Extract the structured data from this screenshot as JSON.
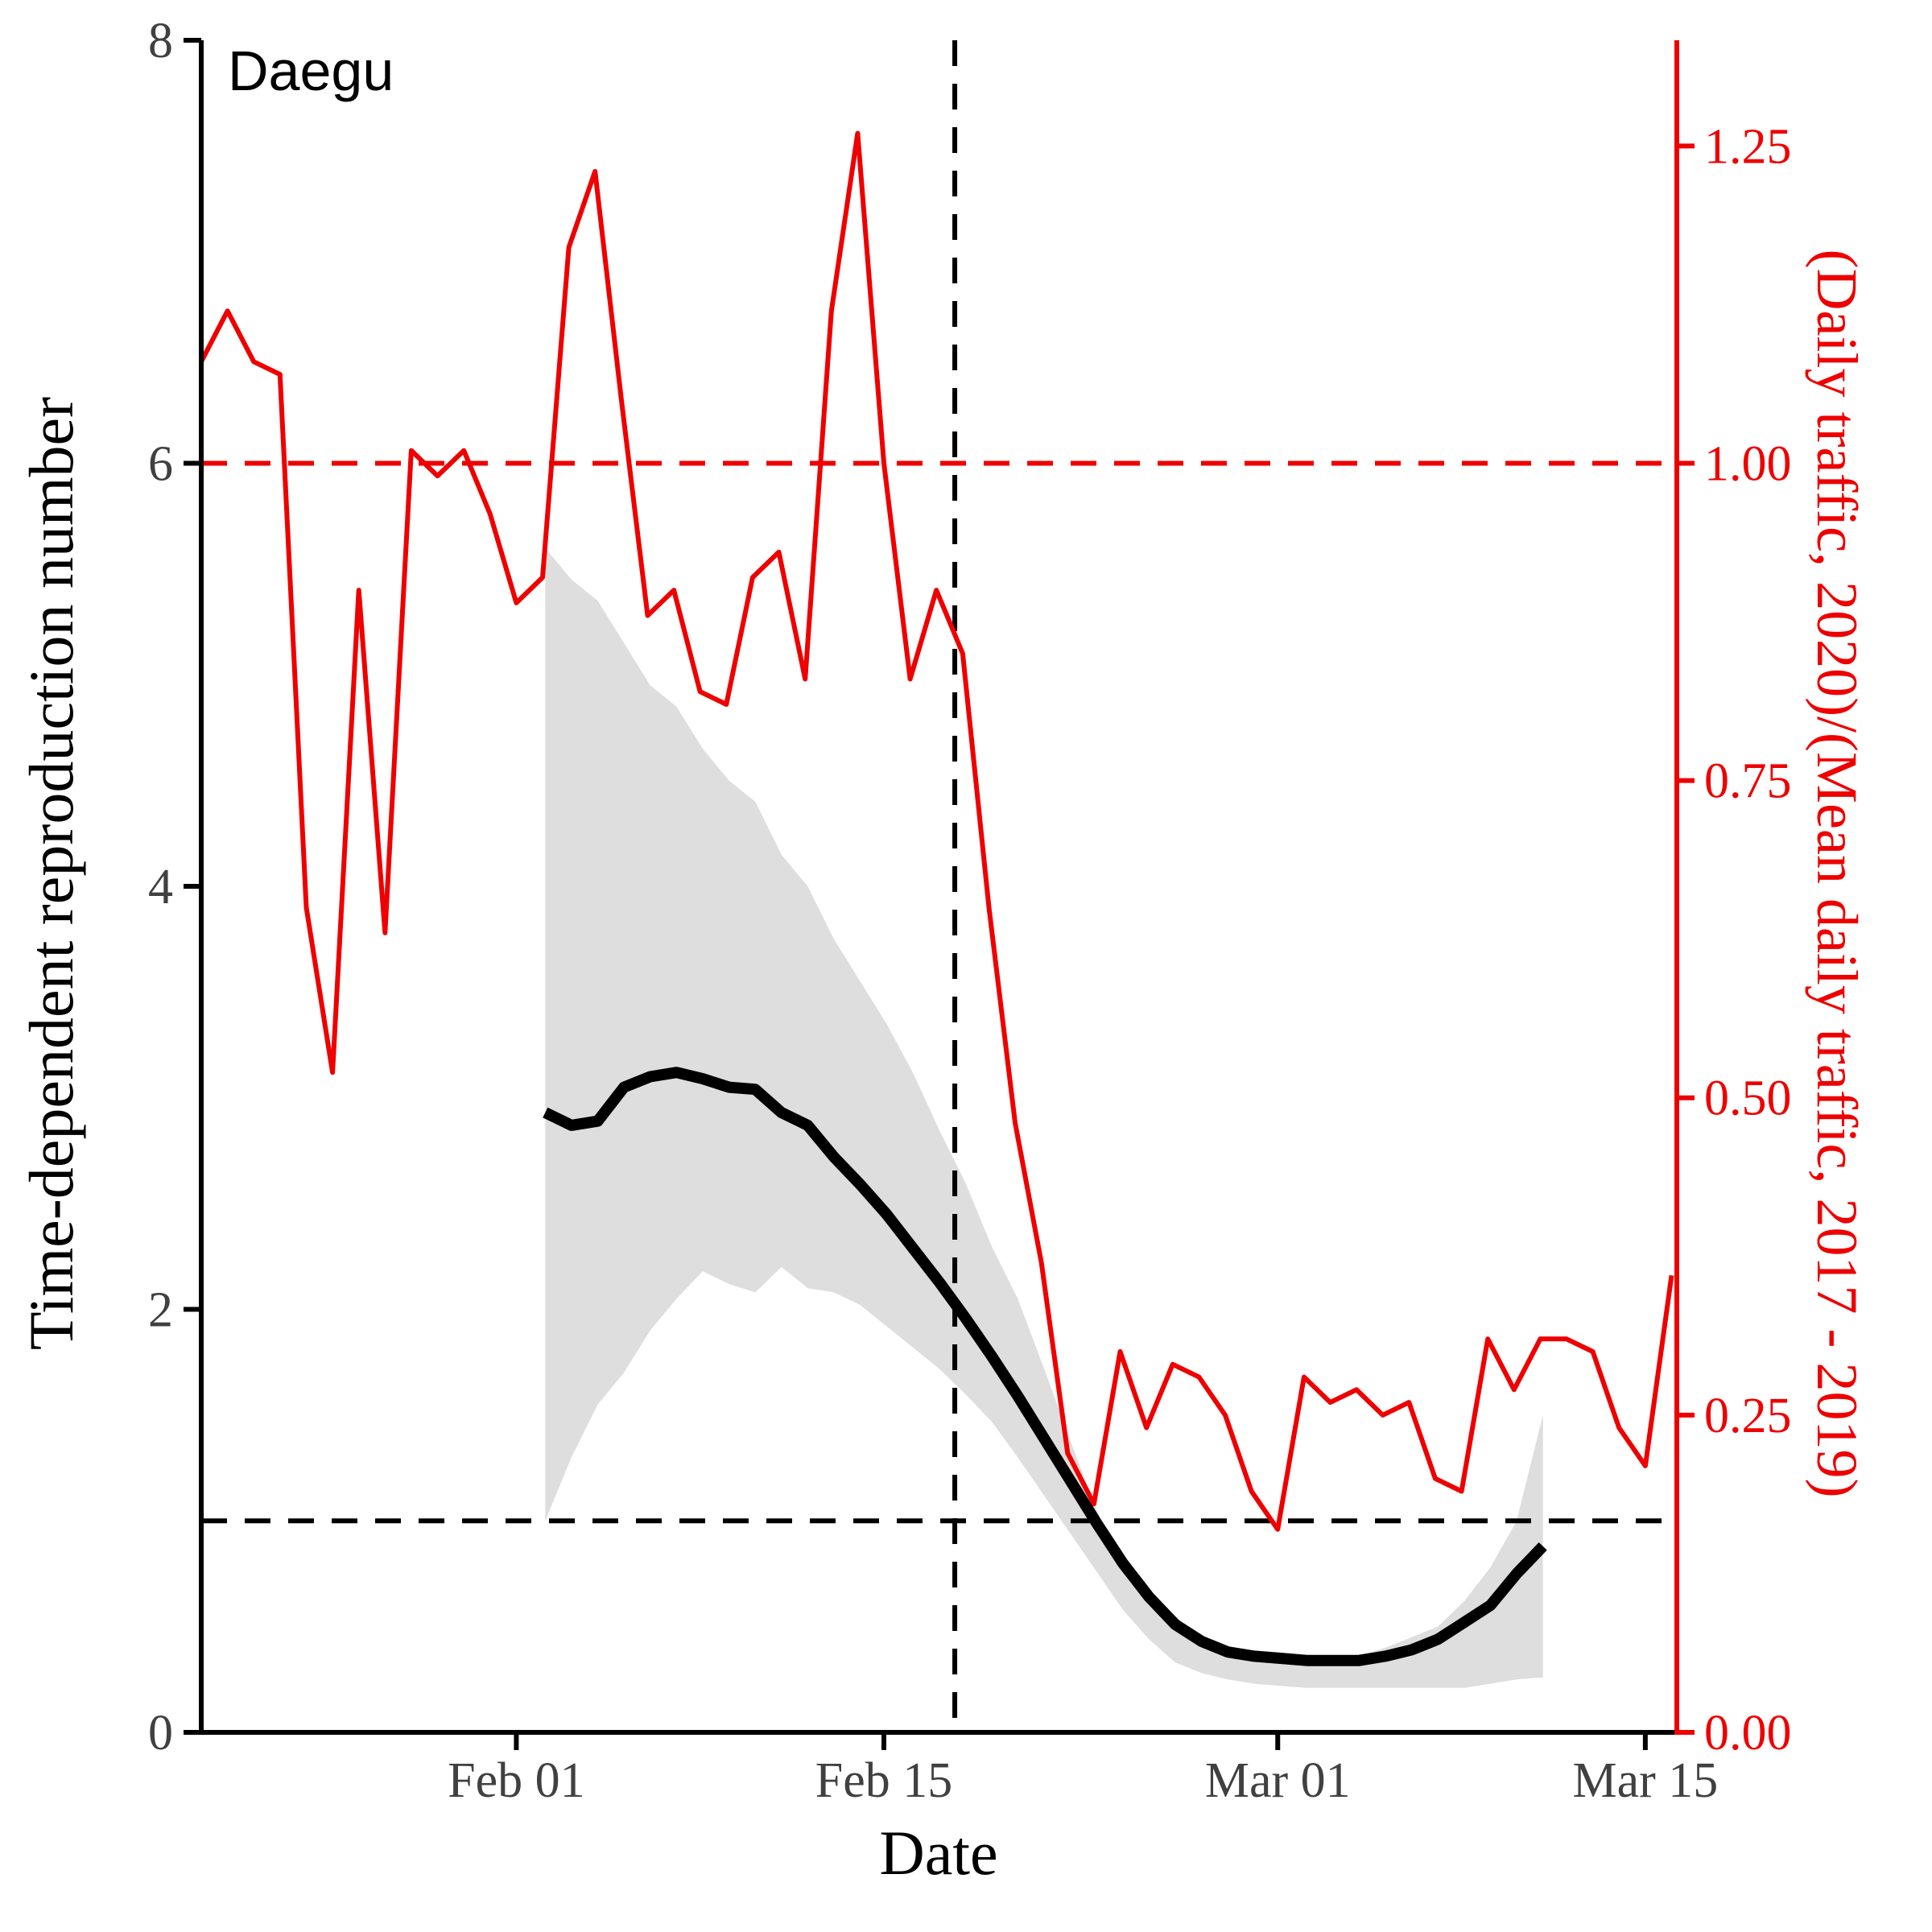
{
  "chart_data": {
    "type": "line",
    "panel_label": "Daegu",
    "xlabel": "Date",
    "ylabel_left": "Time-dependent reproduction number",
    "ylabel_right": "(Daily traffic, 2020)/(Mean daily traffic, 2017 - 2019)",
    "x_ticks": [
      "Feb 01",
      "Feb 15",
      "Mar 01",
      "Mar 15"
    ],
    "x_tick_days": [
      0,
      14,
      29,
      43
    ],
    "x_range_days": [
      -12,
      44.2
    ],
    "y_left_ticks": [
      "0",
      "2",
      "4",
      "6",
      "8"
    ],
    "y_left_range": [
      0,
      8
    ],
    "y_right_ticks": [
      "0.00",
      "0.25",
      "0.50",
      "0.75",
      "1.00",
      "1.25"
    ],
    "y_right_range": [
      0,
      1.3333
    ],
    "colors": {
      "rt": "#000000",
      "traffic": "#ee0000",
      "ci": "#dedede"
    },
    "reference_lines": {
      "rt_threshold": 1,
      "traffic_baseline": 1.0,
      "intervention_day": 16.7
    },
    "rt_series": {
      "name": "Rt",
      "days": [
        1.1,
        2.1,
        3.1,
        4.1,
        5.1,
        6.1,
        7.1,
        8.1,
        9.1,
        10.1,
        11.1,
        12.1,
        13.1,
        14.1,
        15.1,
        16.1,
        17.1,
        18.1,
        19.1,
        20.1,
        21.1,
        22.1,
        23.1,
        24.1,
        25.1,
        26.1,
        27.1,
        28.1,
        29.1,
        30.1,
        31.1,
        32.1,
        33.1,
        34.1,
        35.1,
        36.1,
        37.1,
        38.1,
        39.1
      ],
      "values": [
        2.93,
        2.87,
        2.89,
        3.05,
        3.1,
        3.12,
        3.09,
        3.05,
        3.04,
        2.93,
        2.87,
        2.72,
        2.59,
        2.45,
        2.29,
        2.13,
        1.96,
        1.78,
        1.59,
        1.39,
        1.19,
        0.99,
        0.8,
        0.64,
        0.51,
        0.43,
        0.38,
        0.36,
        0.35,
        0.34,
        0.34,
        0.34,
        0.36,
        0.39,
        0.44,
        0.52,
        0.6,
        0.75,
        0.88
      ],
      "ci_upper": [
        5.6,
        5.45,
        5.35,
        5.15,
        4.95,
        4.85,
        4.65,
        4.5,
        4.4,
        4.15,
        4.0,
        3.75,
        3.55,
        3.35,
        3.12,
        2.85,
        2.6,
        2.3,
        2.05,
        1.72,
        1.38,
        1.05,
        0.78,
        0.6,
        0.48,
        0.41,
        0.37,
        0.35,
        0.34,
        0.33,
        0.34,
        0.36,
        0.4,
        0.45,
        0.5,
        0.62,
        0.78,
        1.0,
        1.5
      ],
      "ci_lower": [
        1.0,
        1.3,
        1.55,
        1.7,
        1.9,
        2.05,
        2.18,
        2.12,
        2.08,
        2.2,
        2.1,
        2.08,
        2.02,
        1.92,
        1.82,
        1.72,
        1.6,
        1.47,
        1.3,
        1.12,
        0.94,
        0.76,
        0.58,
        0.44,
        0.33,
        0.28,
        0.25,
        0.23,
        0.22,
        0.21,
        0.21,
        0.21,
        0.21,
        0.21,
        0.21,
        0.21,
        0.23,
        0.25,
        0.26
      ]
    },
    "traffic_series": {
      "name": "Traffic ratio",
      "days": [
        -12,
        -11,
        -10,
        -9,
        -8,
        -7,
        -6,
        -5,
        -4,
        -3,
        -2,
        -1,
        0,
        1,
        2,
        3,
        4,
        5,
        6,
        7,
        8,
        9,
        10,
        11,
        12,
        13,
        14,
        15,
        16,
        17,
        18,
        19,
        20,
        21,
        22,
        23,
        24,
        25,
        26,
        27,
        28,
        29,
        30,
        31,
        32,
        33,
        34,
        35,
        36,
        37,
        38,
        39,
        40,
        41,
        42,
        43,
        44
      ],
      "values": [
        1.08,
        1.12,
        1.08,
        1.07,
        0.65,
        0.52,
        0.9,
        0.63,
        1.01,
        0.99,
        1.01,
        0.96,
        0.89,
        0.91,
        1.17,
        1.23,
        1.05,
        0.88,
        0.9,
        0.82,
        0.81,
        0.91,
        0.93,
        0.83,
        1.12,
        1.26,
        1.0,
        0.83,
        0.9,
        0.85,
        0.65,
        0.48,
        0.37,
        0.22,
        0.18,
        0.3,
        0.24,
        0.29,
        0.28,
        0.25,
        0.19,
        0.16,
        0.28,
        0.26,
        0.27,
        0.25,
        0.26,
        0.2,
        0.19,
        0.31,
        0.27,
        0.31,
        0.31,
        0.3,
        0.24,
        0.21,
        0.36
      ]
    }
  }
}
